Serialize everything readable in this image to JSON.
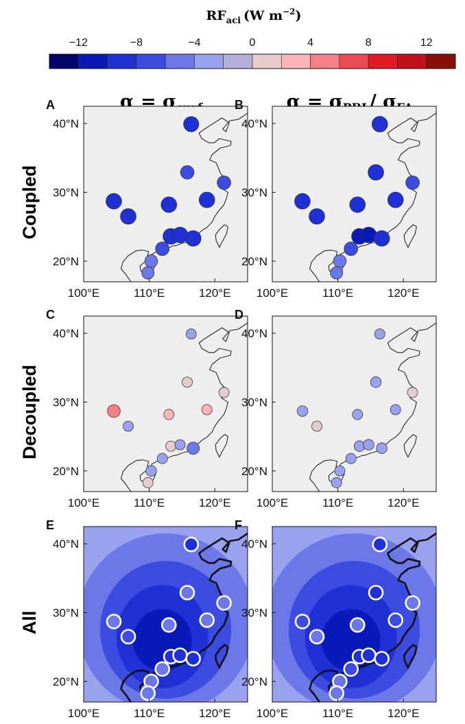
{
  "colorbar": {
    "title_main": "RF",
    "title_sub": "aci",
    "title_unit": "(W m",
    "title_exp": "−2",
    "title_close": ")",
    "colors": [
      "#04066b",
      "#0a1ab8",
      "#1f30d4",
      "#3c4ce0",
      "#6d78e8",
      "#9aa2f0",
      "#b4b0da",
      "#e6cccc",
      "#fbb4b8",
      "#f47f86",
      "#ee4a52",
      "#e01b24",
      "#c41018",
      "#861006"
    ],
    "bins": [
      -14,
      -12,
      -10,
      -8,
      -6,
      -4,
      -2,
      0,
      2,
      4,
      6,
      8,
      10,
      12,
      14
    ],
    "ticks": [
      -12,
      -8,
      -4,
      0,
      4,
      8,
      12
    ],
    "tick_labels": [
      "−12",
      "−8",
      "−4",
      "0",
      "4",
      "8",
      "12"
    ]
  },
  "columns": [
    {
      "alpha": "α = ",
      "sigma1": "σ",
      "sub1": "surf",
      "slash": "",
      "sigma2": "",
      "sub2": ""
    },
    {
      "alpha": "α = ",
      "sigma1": "σ",
      "sub1": "PBL",
      "slash": "/ ",
      "sigma2": "σ",
      "sub2": "FA"
    }
  ],
  "rows": [
    "Coupled",
    "Decoupled",
    "All"
  ],
  "axes": {
    "xlim": [
      100,
      125
    ],
    "ylim": [
      17,
      42.5
    ],
    "xticks": [
      100,
      110,
      120
    ],
    "xtick_labels": [
      "100°E",
      "110°E",
      "120°E"
    ],
    "yticks": [
      20,
      30,
      40
    ],
    "ytick_labels": [
      "20°N",
      "30°N",
      "40°N"
    ]
  },
  "chart_data": [
    {
      "panel": "A",
      "type": "scatter",
      "row": "Coupled",
      "column": "α = σsurf",
      "points": [
        {
          "lon": 116.4,
          "lat": 39.9,
          "value": -8.5
        },
        {
          "lon": 115.8,
          "lat": 32.9,
          "value": -6.5
        },
        {
          "lon": 121.4,
          "lat": 31.4,
          "value": -6.5
        },
        {
          "lon": 104.6,
          "lat": 28.7,
          "value": -9.0
        },
        {
          "lon": 113.0,
          "lat": 28.2,
          "value": -9.0
        },
        {
          "lon": 118.8,
          "lat": 28.9,
          "value": -9.0
        },
        {
          "lon": 106.8,
          "lat": 26.5,
          "value": -9.0
        },
        {
          "lon": 113.3,
          "lat": 23.6,
          "value": -9.5
        },
        {
          "lon": 114.7,
          "lat": 23.8,
          "value": -9.5
        },
        {
          "lon": 116.7,
          "lat": 23.3,
          "value": -9.0
        },
        {
          "lon": 112.0,
          "lat": 21.8,
          "value": -6.5
        },
        {
          "lon": 110.3,
          "lat": 20.0,
          "value": -5.5
        },
        {
          "lon": 109.8,
          "lat": 18.3,
          "value": -5.0
        }
      ]
    },
    {
      "panel": "B",
      "type": "scatter",
      "row": "Coupled",
      "column": "α = σPBL/ σFA",
      "points": [
        {
          "lon": 116.4,
          "lat": 39.9,
          "value": -9.0
        },
        {
          "lon": 115.8,
          "lat": 32.9,
          "value": -9.0
        },
        {
          "lon": 121.4,
          "lat": 31.4,
          "value": -6.5
        },
        {
          "lon": 104.6,
          "lat": 28.7,
          "value": -9.0
        },
        {
          "lon": 113.0,
          "lat": 28.2,
          "value": -9.0
        },
        {
          "lon": 118.8,
          "lat": 28.9,
          "value": -9.0
        },
        {
          "lon": 106.8,
          "lat": 26.5,
          "value": -9.0
        },
        {
          "lon": 113.3,
          "lat": 23.6,
          "value": -10.5
        },
        {
          "lon": 114.7,
          "lat": 23.8,
          "value": -10.5
        },
        {
          "lon": 116.7,
          "lat": 23.3,
          "value": -9.0
        },
        {
          "lon": 112.0,
          "lat": 21.8,
          "value": -6.5
        },
        {
          "lon": 110.3,
          "lat": 20.0,
          "value": -5.5
        },
        {
          "lon": 109.8,
          "lat": 18.3,
          "value": -5.0
        }
      ]
    },
    {
      "panel": "C",
      "type": "scatter",
      "row": "Decoupled",
      "column": "α = σsurf",
      "points": [
        {
          "lon": 116.4,
          "lat": 39.9,
          "value": -2.5
        },
        {
          "lon": 115.8,
          "lat": 32.9,
          "value": 1.0
        },
        {
          "lon": 121.4,
          "lat": 31.4,
          "value": 1.0
        },
        {
          "lon": 104.6,
          "lat": 28.7,
          "value": 5.5
        },
        {
          "lon": 113.0,
          "lat": 28.2,
          "value": 2.5
        },
        {
          "lon": 118.8,
          "lat": 28.9,
          "value": 2.5
        },
        {
          "lon": 106.8,
          "lat": 26.5,
          "value": -2.5
        },
        {
          "lon": 113.3,
          "lat": 23.6,
          "value": 1.0
        },
        {
          "lon": 114.7,
          "lat": 23.8,
          "value": -2.5
        },
        {
          "lon": 116.7,
          "lat": 23.3,
          "value": -5.0
        },
        {
          "lon": 112.0,
          "lat": 21.8,
          "value": -2.5
        },
        {
          "lon": 110.3,
          "lat": 20.0,
          "value": -3.0
        },
        {
          "lon": 109.8,
          "lat": 18.3,
          "value": 1.0
        }
      ]
    },
    {
      "panel": "D",
      "type": "scatter",
      "row": "Decoupled",
      "column": "α = σPBL/ σFA",
      "points": [
        {
          "lon": 116.4,
          "lat": 39.9,
          "value": -2.5
        },
        {
          "lon": 115.8,
          "lat": 32.9,
          "value": -3.0
        },
        {
          "lon": 121.4,
          "lat": 31.4,
          "value": 1.0
        },
        {
          "lon": 104.6,
          "lat": 28.7,
          "value": -3.0
        },
        {
          "lon": 113.0,
          "lat": 28.2,
          "value": -2.5
        },
        {
          "lon": 118.8,
          "lat": 28.9,
          "value": -2.5
        },
        {
          "lon": 106.8,
          "lat": 26.5,
          "value": 1.0
        },
        {
          "lon": 113.3,
          "lat": 23.6,
          "value": -3.0
        },
        {
          "lon": 114.7,
          "lat": 23.8,
          "value": -3.0
        },
        {
          "lon": 116.7,
          "lat": 23.3,
          "value": -3.0
        },
        {
          "lon": 112.0,
          "lat": 21.8,
          "value": -2.5
        },
        {
          "lon": 110.3,
          "lat": 20.0,
          "value": -2.5
        },
        {
          "lon": 109.8,
          "lat": 18.3,
          "value": -2.5
        }
      ]
    },
    {
      "panel": "E",
      "type": "scatter",
      "row": "All",
      "column": "α = σsurf",
      "field": {
        "background_value": -3.0,
        "contours": [
          {
            "lon": 112.5,
            "lat": 28.5,
            "rlon": 13.5,
            "rlat": 13.0,
            "value": -5.0
          },
          {
            "lon": 112.5,
            "lat": 27.5,
            "rlon": 10.0,
            "rlat": 10.0,
            "value": -7.0
          },
          {
            "lon": 112.0,
            "lat": 26.5,
            "rlon": 7.0,
            "rlat": 7.5,
            "value": -9.0
          },
          {
            "lon": 112.0,
            "lat": 26.0,
            "rlon": 4.5,
            "rlat": 4.5,
            "value": -11.0
          }
        ]
      },
      "points": [
        {
          "lon": 116.4,
          "lat": 39.9,
          "value": -8.5
        },
        {
          "lon": 115.8,
          "lat": 32.9,
          "value": -6.0
        },
        {
          "lon": 121.4,
          "lat": 31.4,
          "value": -4.5
        },
        {
          "lon": 104.6,
          "lat": 28.7,
          "value": -5.0
        },
        {
          "lon": 113.0,
          "lat": 28.2,
          "value": -6.0
        },
        {
          "lon": 118.8,
          "lat": 28.9,
          "value": -6.0
        },
        {
          "lon": 106.8,
          "lat": 26.5,
          "value": -8.0
        },
        {
          "lon": 113.3,
          "lat": 23.6,
          "value": -9.0
        },
        {
          "lon": 114.7,
          "lat": 23.8,
          "value": -9.0
        },
        {
          "lon": 116.7,
          "lat": 23.3,
          "value": -9.0
        },
        {
          "lon": 112.0,
          "lat": 21.8,
          "value": -6.0
        },
        {
          "lon": 110.3,
          "lat": 20.0,
          "value": -5.5
        },
        {
          "lon": 109.8,
          "lat": 18.3,
          "value": -4.5
        }
      ]
    },
    {
      "panel": "F",
      "type": "scatter",
      "row": "All",
      "column": "α = σPBL/ σFA",
      "field": {
        "background_value": -3.0,
        "contours": [
          {
            "lon": 112.5,
            "lat": 28.5,
            "rlon": 13.5,
            "rlat": 13.0,
            "value": -5.0
          },
          {
            "lon": 112.5,
            "lat": 27.5,
            "rlon": 10.0,
            "rlat": 10.0,
            "value": -7.0
          },
          {
            "lon": 112.0,
            "lat": 26.5,
            "rlon": 7.0,
            "rlat": 7.5,
            "value": -9.0
          },
          {
            "lon": 112.0,
            "lat": 26.0,
            "rlon": 4.5,
            "rlat": 4.5,
            "value": -11.0
          }
        ]
      },
      "points": [
        {
          "lon": 116.4,
          "lat": 39.9,
          "value": -8.5
        },
        {
          "lon": 115.8,
          "lat": 32.9,
          "value": -8.5
        },
        {
          "lon": 121.4,
          "lat": 31.4,
          "value": -5.0
        },
        {
          "lon": 104.6,
          "lat": 28.7,
          "value": -8.0
        },
        {
          "lon": 113.0,
          "lat": 28.2,
          "value": -6.0
        },
        {
          "lon": 118.8,
          "lat": 28.9,
          "value": -8.0
        },
        {
          "lon": 106.8,
          "lat": 26.5,
          "value": -6.0
        },
        {
          "lon": 113.3,
          "lat": 23.6,
          "value": -9.0
        },
        {
          "lon": 114.7,
          "lat": 23.8,
          "value": -9.0
        },
        {
          "lon": 116.7,
          "lat": 23.3,
          "value": -9.0
        },
        {
          "lon": 112.0,
          "lat": 21.8,
          "value": -8.0
        },
        {
          "lon": 110.3,
          "lat": 20.0,
          "value": -5.5
        },
        {
          "lon": 109.8,
          "lat": 18.3,
          "value": -4.5
        }
      ]
    }
  ]
}
